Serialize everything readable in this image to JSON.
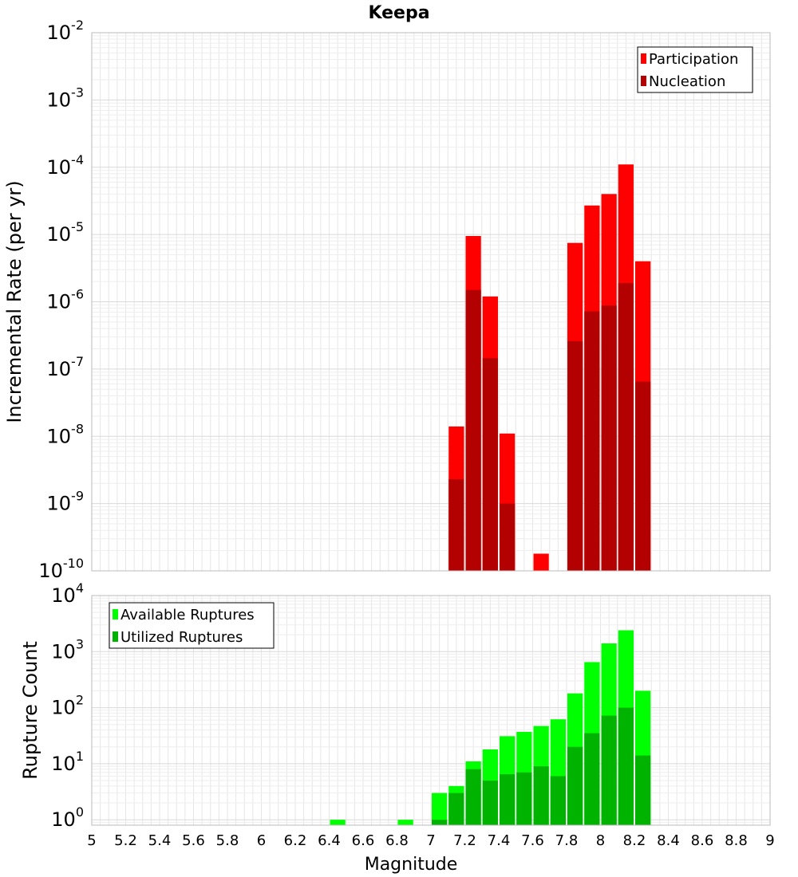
{
  "chart_data": [
    {
      "type": "bar",
      "panel": "top",
      "title": "Keepa",
      "xlabel": "",
      "ylabel": "Incremental Rate (per yr)",
      "yscale": "log",
      "ylim": [
        1e-10,
        0.01
      ],
      "xlim": [
        5,
        9
      ],
      "bin_width": 0.1,
      "grid": true,
      "legend_placement": "top-right",
      "y_tick_exponents": [
        "-2",
        "-3",
        "-4",
        "-5",
        "-6",
        "-7",
        "-8",
        "-9",
        "-10"
      ],
      "series": [
        {
          "name": "Participation",
          "color": "#ff0000",
          "points": [
            {
              "x": 7.15,
              "y": 1.4e-08
            },
            {
              "x": 7.25,
              "y": 9.5e-06
            },
            {
              "x": 7.35,
              "y": 1.2e-06
            },
            {
              "x": 7.45,
              "y": 1.1e-08
            },
            {
              "x": 7.65,
              "y": 1.8e-10
            },
            {
              "x": 7.85,
              "y": 7.5e-06
            },
            {
              "x": 7.95,
              "y": 2.7e-05
            },
            {
              "x": 8.05,
              "y": 4e-05
            },
            {
              "x": 8.15,
              "y": 0.00011
            },
            {
              "x": 8.25,
              "y": 4e-06
            }
          ]
        },
        {
          "name": "Nucleation",
          "color": "#b30000",
          "points": [
            {
              "x": 7.15,
              "y": 2.3e-09
            },
            {
              "x": 7.25,
              "y": 1.5e-06
            },
            {
              "x": 7.35,
              "y": 1.45e-07
            },
            {
              "x": 7.45,
              "y": 1e-09
            },
            {
              "x": 7.85,
              "y": 2.6e-07
            },
            {
              "x": 7.95,
              "y": 7.2e-07
            },
            {
              "x": 8.05,
              "y": 8.8e-07
            },
            {
              "x": 8.15,
              "y": 1.9e-06
            },
            {
              "x": 8.25,
              "y": 6.5e-08
            }
          ]
        }
      ]
    },
    {
      "type": "bar",
      "panel": "bottom",
      "title": "",
      "xlabel": "Magnitude",
      "ylabel": "Rupture Count",
      "yscale": "log",
      "ylim": [
        0.8,
        10000
      ],
      "xlim": [
        5,
        9
      ],
      "bin_width": 0.1,
      "grid": true,
      "legend_placement": "top-left",
      "x_ticks": [
        "5",
        "5.2",
        "5.4",
        "5.6",
        "5.8",
        "6",
        "6.2",
        "6.4",
        "6.6",
        "6.8",
        "7",
        "7.2",
        "7.4",
        "7.6",
        "7.8",
        "8",
        "8.2",
        "8.4",
        "8.6",
        "8.8",
        "9"
      ],
      "y_tick_exponents": [
        "4",
        "3",
        "2",
        "1",
        "0"
      ],
      "series": [
        {
          "name": "Available Ruptures",
          "color": "#00ff00",
          "points": [
            {
              "x": 6.45,
              "y": 1
            },
            {
              "x": 6.85,
              "y": 1
            },
            {
              "x": 7.05,
              "y": 3
            },
            {
              "x": 7.15,
              "y": 4
            },
            {
              "x": 7.25,
              "y": 11
            },
            {
              "x": 7.35,
              "y": 18
            },
            {
              "x": 7.45,
              "y": 31
            },
            {
              "x": 7.55,
              "y": 37
            },
            {
              "x": 7.65,
              "y": 47
            },
            {
              "x": 7.75,
              "y": 62
            },
            {
              "x": 7.85,
              "y": 180
            },
            {
              "x": 7.95,
              "y": 650
            },
            {
              "x": 8.05,
              "y": 1400
            },
            {
              "x": 8.15,
              "y": 2400
            },
            {
              "x": 8.25,
              "y": 200
            }
          ]
        },
        {
          "name": "Utilized Ruptures",
          "color": "#00b300",
          "points": [
            {
              "x": 7.05,
              "y": 1
            },
            {
              "x": 7.15,
              "y": 3
            },
            {
              "x": 7.25,
              "y": 8
            },
            {
              "x": 7.35,
              "y": 5
            },
            {
              "x": 7.45,
              "y": 6.5
            },
            {
              "x": 7.55,
              "y": 7
            },
            {
              "x": 7.65,
              "y": 9
            },
            {
              "x": 7.75,
              "y": 6
            },
            {
              "x": 7.85,
              "y": 20
            },
            {
              "x": 7.95,
              "y": 35
            },
            {
              "x": 8.05,
              "y": 72
            },
            {
              "x": 8.15,
              "y": 100
            },
            {
              "x": 8.25,
              "y": 14
            }
          ]
        }
      ]
    }
  ]
}
